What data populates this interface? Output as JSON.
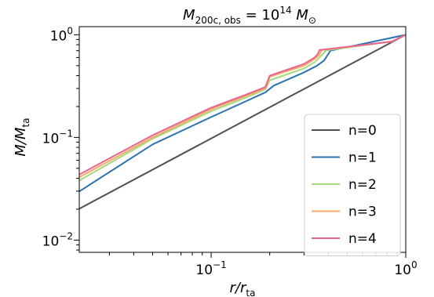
{
  "chart_data": {
    "type": "line",
    "title": "M_200c,obs = 10^14 M_⊙",
    "title_parts": {
      "m": "M",
      "sub": "200c, obs",
      "eq": " = 10",
      "exp": "14",
      "unit_m": " M",
      "unit_sub": "⊙"
    },
    "xlabel": "r/r_ta",
    "xlabel_parts": {
      "main": "r/r",
      "sub": "ta"
    },
    "ylabel": "M/M_ta",
    "ylabel_parts": {
      "main": "M/M",
      "sub": "ta"
    },
    "xscale": "log",
    "yscale": "log",
    "xlim": [
      0.021,
      1.0
    ],
    "ylim": [
      0.0076,
      1.2
    ],
    "x_ticks": [
      {
        "value": 0.1,
        "base": "10",
        "exp": "−1"
      },
      {
        "value": 1.0,
        "base": "10",
        "exp": "0"
      }
    ],
    "y_ticks": [
      {
        "value": 0.01,
        "base": "10",
        "exp": "−2"
      },
      {
        "value": 0.1,
        "base": "10",
        "exp": "−1"
      },
      {
        "value": 1.0,
        "base": "10",
        "exp": "0"
      }
    ],
    "grid": false,
    "legend_position": "bottom-right",
    "series": [
      {
        "name": "n=0",
        "color": "#505050",
        "x": [
          0.021,
          1.0
        ],
        "y": [
          0.0202,
          1.0
        ]
      },
      {
        "name": "n=1",
        "color": "#2b73b0",
        "x": [
          0.021,
          0.05,
          0.1,
          0.15,
          0.19,
          0.21,
          0.3,
          0.35,
          0.38,
          0.41,
          1.0
        ],
        "y": [
          0.0298,
          0.0855,
          0.158,
          0.224,
          0.275,
          0.32,
          0.43,
          0.5,
          0.56,
          0.7,
          1.0
        ]
      },
      {
        "name": "n=2",
        "color": "#a6d97c",
        "x": [
          0.021,
          0.05,
          0.1,
          0.15,
          0.19,
          0.2,
          0.3,
          0.34,
          0.36,
          0.38,
          0.39,
          0.85,
          1.0
        ],
        "y": [
          0.038,
          0.097,
          0.18,
          0.243,
          0.294,
          0.36,
          0.47,
          0.54,
          0.6,
          0.67,
          0.705,
          0.86,
          1.0
        ]
      },
      {
        "name": "n=3",
        "color": "#f5a96a",
        "x": [
          0.021,
          0.05,
          0.1,
          0.15,
          0.19,
          0.2,
          0.3,
          0.34,
          0.36,
          0.37,
          0.85,
          1.0
        ],
        "y": [
          0.041,
          0.1,
          0.188,
          0.253,
          0.302,
          0.39,
          0.5,
          0.58,
          0.64,
          0.71,
          0.86,
          1.0
        ]
      },
      {
        "name": "n=4",
        "color": "#e8648f",
        "x": [
          0.021,
          0.05,
          0.1,
          0.15,
          0.19,
          0.2,
          0.3,
          0.34,
          0.355,
          0.36,
          0.85,
          1.0
        ],
        "y": [
          0.0435,
          0.105,
          0.195,
          0.26,
          0.31,
          0.4,
          0.52,
          0.6,
          0.66,
          0.71,
          0.86,
          1.0
        ]
      }
    ]
  }
}
